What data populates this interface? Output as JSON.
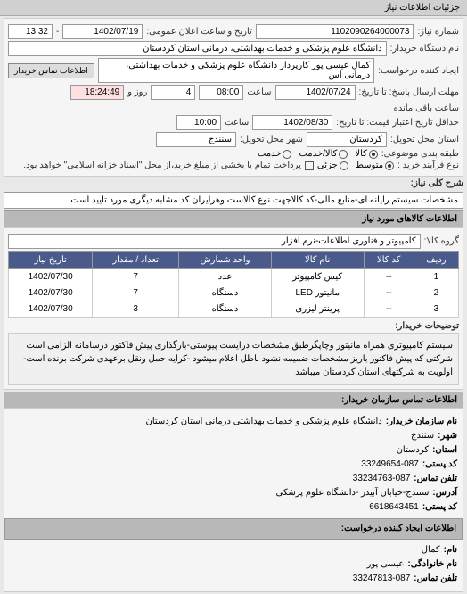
{
  "tab": "جزئیات اطلاعات نیاز",
  "info": {
    "request_number_label": "شماره نیاز:",
    "request_number": "1102090264000073",
    "announce_label": "تاریخ و ساعت اعلان عمومی:",
    "announce_date": "1402/07/19",
    "announce_time": "13:32",
    "buyer_org_label": "نام دستگاه خریدار:",
    "buyer_org": "دانشگاه علوم پزشکی و خدمات بهداشتی، درمانی استان کردستان",
    "requester_label": "ایجاد کننده درخواست:",
    "requester": "کمال عیسی پور کارپرداز دانشگاه علوم پزشکی و خدمات بهداشتی، درمانی اس",
    "contact_btn": "اطلاعات تماس خریدار",
    "deadline_label": "مهلت ارسال پاسخ: تا تاریخ:",
    "deadline_date": "1402/07/24",
    "deadline_time_label": "ساعت",
    "deadline_time": "08:00",
    "remaining_days": "4",
    "remaining_days_label": "روز و",
    "remaining_time": "18:24:49",
    "remaining_suffix": "ساعت باقی مانده",
    "validity_label": "حداقل تاریخ اعتبار قیمت: تا تاریخ:",
    "validity_date": "1402/08/30",
    "validity_time_label": "ساعت",
    "validity_time": "10:00",
    "delivery_province_label": "استان محل تحویل:",
    "delivery_province": "کردستان",
    "delivery_city_label": "شهر محل تحویل:",
    "delivery_city": "سنندج",
    "packaging_label": "طبقه بندی موضوعی:",
    "pack_opt1": "کالا",
    "pack_opt2": "کالا/خدمت",
    "pack_opt3": "خدمت",
    "process_label": "نوع فرآیند خرید :",
    "proc_opt1": "متوسط",
    "proc_opt2": "جزئی",
    "payment_check_label": "پرداخت تمام یا بخشی از مبلغ خرید،از محل \"اسناد خزانه اسلامی\" خواهد بود."
  },
  "keyword": {
    "header": "شرح کلی نیاز:",
    "text": "مشخصات سیستم رایانه ای-منابع مالی-کد کالاجهت نوع کالاست وهرایران کد مشابه دیگری مورد تایید است"
  },
  "items": {
    "header": "اطلاعات کالاهای مورد نیاز",
    "group_label": "گروه کالا:",
    "group": "کامپیوتر و فناوری اطلاعات-نرم افزار",
    "cols": [
      "ردیف",
      "کد کالا",
      "نام کالا",
      "واحد شمارش",
      "تعداد / مقدار",
      "تاریخ نیاز"
    ],
    "rows": [
      [
        "1",
        "--",
        "کیس کامپیوتر",
        "عدد",
        "7",
        "1402/07/30"
      ],
      [
        "2",
        "--",
        "مانیتور LED",
        "دستگاه",
        "7",
        "1402/07/30"
      ],
      [
        "3",
        "--",
        "پرینتر لیزری",
        "دستگاه",
        "3",
        "1402/07/30"
      ]
    ],
    "desc_label": "توضیحات خریدار:",
    "desc": "سیستم کامپیوتری همراه مانیتور وچاپگرطبق مشخصات درایست پیوستی-بارگذاری پیش فاکتور درسامانه الزامی است شرکتی که پیش فاکتور باریز مشخصات ضمیمه نشود باطل اعلام میشود -کرایه حمل ونقل برعهدی شرکت برنده است-اولویت به شرکتهای استان کردستان میباشد"
  },
  "contact": {
    "header": "اطلاعات تماس سازمان خریدار:",
    "org_label": "نام سازمان خریدار:",
    "org": "دانشگاه علوم پزشکی و خدمات بهداشتی درمانی استان کردستان",
    "province_label": "شهر:",
    "province": "سنندج",
    "state_label": "استان:",
    "state": "کردستان",
    "postal_label": "کد پستی:",
    "postal": "33249654-087",
    "phone_label": "تلفن تماس:",
    "phone": "33234763-087",
    "address_label": "آدرس:",
    "address": "سنندج-خیابان آبیدر -دانشگاه علوم پزشکی",
    "pobox_label": "کد پستی:",
    "pobox": "6618643451",
    "req_header": "اطلاعات ایجاد کننده درخواست:",
    "name_label": "نام:",
    "name_family_label": "نام خانوادگی:",
    "name_family": "عیسی پور",
    "name": "کمال",
    "req_phone_label": "تلفن تماس:",
    "req_phone": "33247813-087"
  }
}
